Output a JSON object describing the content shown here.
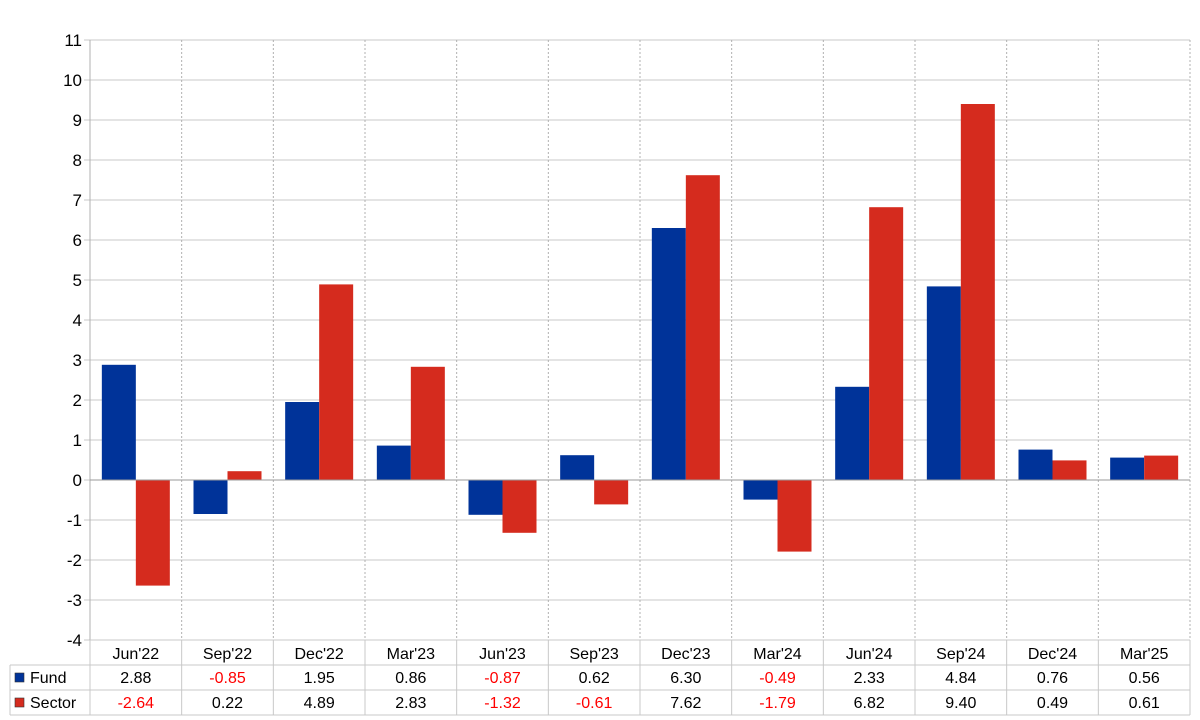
{
  "chart_data": {
    "type": "bar",
    "title": "",
    "xlabel": "",
    "ylabel": "",
    "ylim": [
      -4,
      11
    ],
    "ytick_step": 1,
    "grid": true,
    "categories": [
      "Jun'22",
      "Sep'22",
      "Dec'22",
      "Mar'23",
      "Jun'23",
      "Sep'23",
      "Dec'23",
      "Mar'24",
      "Jun'24",
      "Sep'24",
      "Dec'24",
      "Mar'25"
    ],
    "series": [
      {
        "name": "Fund",
        "color": "#003399",
        "values": [
          2.88,
          -0.85,
          1.95,
          0.86,
          -0.87,
          0.62,
          6.3,
          -0.49,
          2.33,
          4.84,
          0.76,
          0.56
        ],
        "labels": [
          "2.88",
          "-0.85",
          "1.95",
          "0.86",
          "-0.87",
          "0.62",
          "6.30",
          "-0.49",
          "2.33",
          "4.84",
          "0.76",
          "0.56"
        ]
      },
      {
        "name": "Sector",
        "color": "#d52b1e",
        "values": [
          -2.64,
          0.22,
          4.89,
          2.83,
          -1.32,
          -0.61,
          7.62,
          -1.79,
          6.82,
          9.4,
          0.49,
          0.61
        ],
        "labels": [
          "-2.64",
          "0.22",
          "4.89",
          "2.83",
          "-1.32",
          "-0.61",
          "7.62",
          "-1.79",
          "6.82",
          "9.40",
          "0.49",
          "0.61"
        ]
      }
    ],
    "negative_label_color": "#ff0000",
    "data_table": true
  }
}
